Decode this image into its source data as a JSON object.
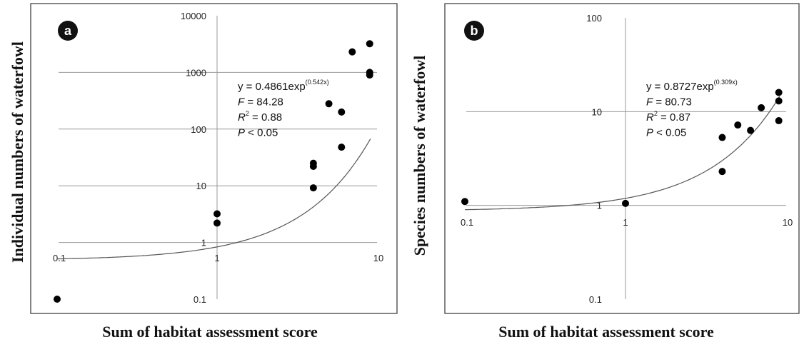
{
  "chart_data": [
    {
      "type": "scatter",
      "panel_label": "a",
      "xlabel": "Sum of habitat assessment score",
      "ylabel": "Individual numbers of waterfowl",
      "x_scale": "log",
      "y_scale": "log",
      "xlim": [
        0.1,
        10
      ],
      "ylim": [
        0.1,
        10000
      ],
      "x_ticks": [
        "0.1",
        "1",
        "10"
      ],
      "y_ticks": [
        "0.1",
        "1",
        "10",
        "100",
        "1000",
        "10000"
      ],
      "grid": true,
      "points": [
        {
          "x": 0.1,
          "y": 0.1
        },
        {
          "x": 1,
          "y": 3.2
        },
        {
          "x": 1,
          "y": 2.2
        },
        {
          "x": 4,
          "y": 25
        },
        {
          "x": 4,
          "y": 22
        },
        {
          "x": 4,
          "y": 9.2
        },
        {
          "x": 5,
          "y": 280
        },
        {
          "x": 6,
          "y": 200
        },
        {
          "x": 6,
          "y": 48
        },
        {
          "x": 7,
          "y": 2300
        },
        {
          "x": 9,
          "y": 3200
        },
        {
          "x": 9,
          "y": 1000
        },
        {
          "x": 9,
          "y": 900
        }
      ],
      "fit": {
        "a": 0.4861,
        "b": 0.542
      },
      "equation": {
        "line1": "y = 0.4861exp",
        "line1_sup": "(0.542x)",
        "f": "= 84.28",
        "r2": "= 0.88",
        "p": "< 0.05"
      }
    },
    {
      "type": "scatter",
      "panel_label": "b",
      "xlabel": "Sum of habitat assessment score",
      "ylabel": "Species numbers of waterfowl",
      "x_scale": "log",
      "y_scale": "log",
      "xlim": [
        0.1,
        10
      ],
      "ylim": [
        0.1,
        100
      ],
      "x_ticks": [
        "0.1",
        "1",
        "10"
      ],
      "y_ticks": [
        "0.1",
        "1",
        "10",
        "100"
      ],
      "grid": true,
      "points": [
        {
          "x": 0.1,
          "y": 1.1
        },
        {
          "x": 1,
          "y": 1.05
        },
        {
          "x": 4,
          "y": 5.3
        },
        {
          "x": 4,
          "y": 2.3
        },
        {
          "x": 5,
          "y": 7.2
        },
        {
          "x": 6,
          "y": 6.3
        },
        {
          "x": 7,
          "y": 11
        },
        {
          "x": 9,
          "y": 16
        },
        {
          "x": 9,
          "y": 13
        },
        {
          "x": 9,
          "y": 8
        }
      ],
      "fit": {
        "a": 0.8727,
        "b": 0.309
      },
      "equation": {
        "line1": "y = 0.8727exp",
        "line1_sup": "(0.309x)",
        "f": "= 80.73",
        "r2": "= 0.87",
        "p": "< 0.05"
      }
    }
  ]
}
